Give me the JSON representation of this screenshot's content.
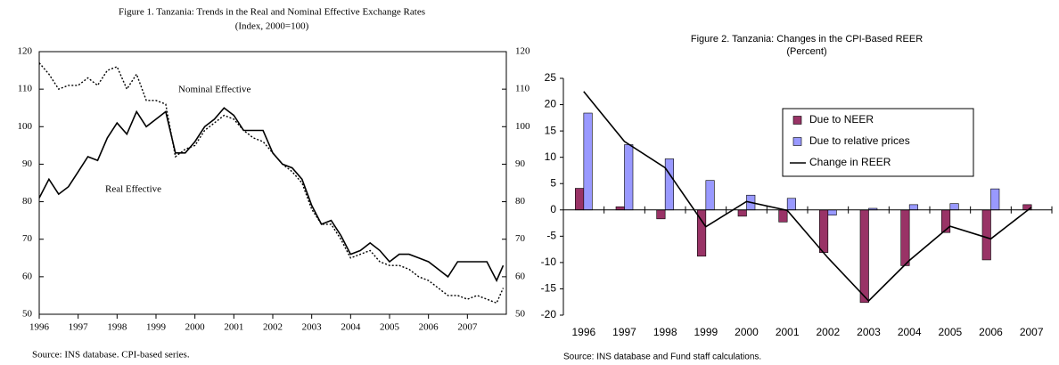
{
  "chart_data": [
    {
      "type": "line",
      "title": "Figure 1. Tanzania: Trends in the Real and Nominal Effective Exchange Rates",
      "subtitle": "(Index, 2000=100)",
      "source": "Source: INS database. CPI-based series.",
      "x": [
        1996.0,
        1996.25,
        1996.5,
        1996.75,
        1997.0,
        1997.25,
        1997.5,
        1997.75,
        1998.0,
        1998.25,
        1998.5,
        1998.75,
        1999.0,
        1999.25,
        1999.5,
        1999.75,
        2000.0,
        2000.25,
        2000.5,
        2000.75,
        2001.0,
        2001.25,
        2001.5,
        2001.75,
        2002.0,
        2002.25,
        2002.5,
        2002.75,
        2003.0,
        2003.25,
        2003.5,
        2003.75,
        2004.0,
        2004.25,
        2004.5,
        2004.75,
        2005.0,
        2005.25,
        2005.5,
        2005.75,
        2006.0,
        2006.25,
        2006.5,
        2006.75,
        2007.0,
        2007.25,
        2007.5,
        2007.75,
        2007.92
      ],
      "series": [
        {
          "name": "Real Effective",
          "color": "#000000",
          "dash": "solid",
          "values": [
            81,
            86,
            82,
            84,
            88,
            92,
            91,
            97,
            101,
            98,
            104,
            100,
            102,
            104,
            93,
            93,
            96,
            100,
            102,
            105,
            103,
            99,
            99,
            99,
            93,
            90,
            89,
            86,
            79,
            74,
            75,
            71,
            66,
            67,
            69,
            67,
            64,
            66,
            66,
            65,
            64,
            62,
            60,
            64,
            64,
            64,
            64,
            59,
            63
          ]
        },
        {
          "name": "Nominal Effective",
          "color": "#000000",
          "dash": "dotted",
          "values": [
            117,
            114,
            110,
            111,
            111,
            113,
            111,
            115,
            116,
            110,
            114,
            107,
            107,
            106,
            92,
            94,
            95,
            99,
            101,
            103,
            102,
            99,
            97,
            96,
            93,
            90,
            88,
            85,
            78,
            74,
            74,
            70,
            65,
            66,
            67,
            64,
            63,
            63,
            62,
            60,
            59,
            57,
            55,
            55,
            54,
            55,
            54,
            53,
            57
          ]
        }
      ],
      "xlim": [
        1996,
        2008
      ],
      "xticks": [
        1996,
        1997,
        1998,
        1999,
        2000,
        2001,
        2002,
        2003,
        2004,
        2005,
        2006,
        2007
      ],
      "ylim": [
        50,
        120
      ],
      "yticks": [
        50,
        60,
        70,
        80,
        90,
        100,
        110,
        120
      ],
      "y2lim": [
        50,
        120
      ],
      "y2ticks": [
        50,
        60,
        70,
        80,
        90,
        100,
        110,
        120
      ],
      "grid": false
    },
    {
      "type": "bar",
      "title": "Figure 2. Tanzania: Changes in the CPI-Based REER",
      "subtitle": "(Percent)",
      "source": "Source: INS database and Fund staff calculations.",
      "categories": [
        "1996",
        "1997",
        "1998",
        "1999",
        "2000",
        "2001",
        "2002",
        "2003",
        "2004",
        "2005",
        "2006",
        "2007"
      ],
      "series": [
        {
          "name": "Due to NEER",
          "color": "#993366",
          "type": "bar",
          "values": [
            4.1,
            0.6,
            -1.7,
            -8.8,
            -1.2,
            -2.3,
            -8.1,
            -17.6,
            -10.6,
            -4.3,
            -9.5,
            1.0
          ]
        },
        {
          "name": "Due to relative prices",
          "color": "#9999ff",
          "type": "bar",
          "values": [
            18.4,
            12.4,
            9.7,
            5.6,
            2.8,
            2.2,
            -1.0,
            0.3,
            1.0,
            1.2,
            4.0,
            0.0
          ]
        },
        {
          "name": "Change in REER",
          "color": "#000000",
          "type": "line",
          "values": [
            22.5,
            13.0,
            8.0,
            -3.2,
            1.6,
            -0.1,
            -9.1,
            -17.3,
            -9.6,
            -3.1,
            -5.5,
            0.5
          ]
        }
      ],
      "ylim": [
        -20,
        25
      ],
      "yticks": [
        -20,
        -15,
        -10,
        -5,
        0,
        5,
        10,
        15,
        20,
        25
      ],
      "grid": false
    }
  ]
}
